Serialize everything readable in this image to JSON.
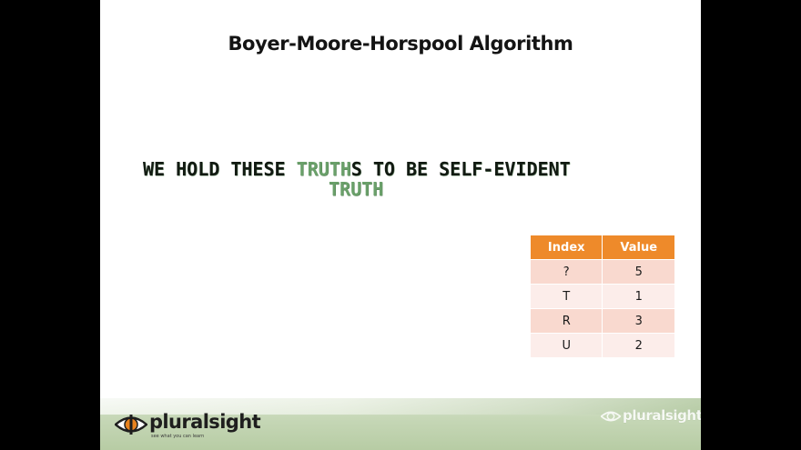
{
  "slide": {
    "title": "Boyer-Moore-Horspool Algorithm"
  },
  "text_line": {
    "before": "WE HOLD THESE ",
    "match": "TRUTH",
    "after": "S TO BE SELF-EVIDENT"
  },
  "pattern": "TRUTH",
  "shift_table": {
    "headers": [
      "Index",
      "Value"
    ],
    "rows": [
      {
        "index": "?",
        "value": "5"
      },
      {
        "index": "T",
        "value": "1"
      },
      {
        "index": "R",
        "value": "3"
      },
      {
        "index": "U",
        "value": "2"
      }
    ],
    "colors": {
      "header": "#ee8a2a",
      "row_odd": "#f9d9cf",
      "row_even": "#fcedea"
    }
  },
  "footer": {
    "brand": "pluralsight",
    "tagline": "see what you can learn",
    "watermark": "pluralsight",
    "logo_icon": "eye-icon"
  },
  "colors": {
    "match_highlight": "#6aa06a",
    "background": "#ffffff",
    "frame": "#000000"
  }
}
